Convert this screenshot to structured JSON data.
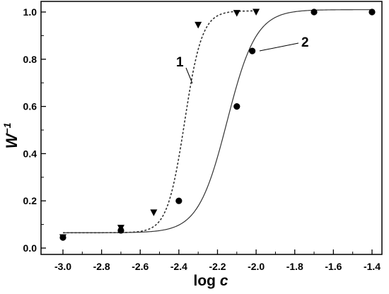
{
  "chart_data": {
    "type": "scatter",
    "xlabel": "log c",
    "xlabel_parts": {
      "main": "log ",
      "italic": "c"
    },
    "ylabel": "W⁻¹",
    "ylabel_parts": {
      "main": "W",
      "sup": "−1"
    },
    "xlim": [
      -3.0,
      -1.4
    ],
    "ylim": [
      0.0,
      1.0
    ],
    "x_ticks": [
      -3.0,
      -2.8,
      -2.6,
      -2.4,
      -2.2,
      -2.0,
      -1.8,
      -1.6,
      -1.4
    ],
    "x_tick_labels": [
      "-3.0",
      "-2.8",
      "-2.6",
      "-2.4",
      "-2.2",
      "-2.0",
      "-1.8",
      "-1.6",
      "-1.4"
    ],
    "y_ticks": [
      0.0,
      0.2,
      0.4,
      0.6,
      0.8,
      1.0
    ],
    "y_tick_labels": [
      "0.0",
      "0.2",
      "0.4",
      "0.6",
      "0.8",
      "1.0"
    ],
    "grid": false,
    "legend": "none",
    "series": [
      {
        "name": "1",
        "marker": "triangle-down",
        "line": "dashed",
        "color": "#333333",
        "x": [
          -3.0,
          -2.7,
          -2.53,
          -2.3,
          -2.1,
          -2.0
        ],
        "y": [
          0.045,
          0.085,
          0.15,
          0.945,
          0.995,
          1.0
        ],
        "fit": {
          "model": "sigmoid",
          "bottom": 0.065,
          "top": 1.005,
          "x0": -2.37,
          "slope": 0.045
        }
      },
      {
        "name": "2",
        "marker": "circle",
        "line": "solid",
        "color": "#333333",
        "x": [
          -3.0,
          -2.7,
          -2.4,
          -2.1,
          -2.02,
          -1.7,
          -1.4
        ],
        "y": [
          0.045,
          0.075,
          0.2,
          0.6,
          0.835,
          1.0,
          1.0
        ],
        "fit": {
          "model": "sigmoid",
          "bottom": 0.065,
          "top": 1.01,
          "x0": -2.15,
          "slope": 0.075
        }
      }
    ],
    "annotations": [
      {
        "text": "1",
        "series": "1"
      },
      {
        "text": "2",
        "series": "2"
      }
    ]
  }
}
